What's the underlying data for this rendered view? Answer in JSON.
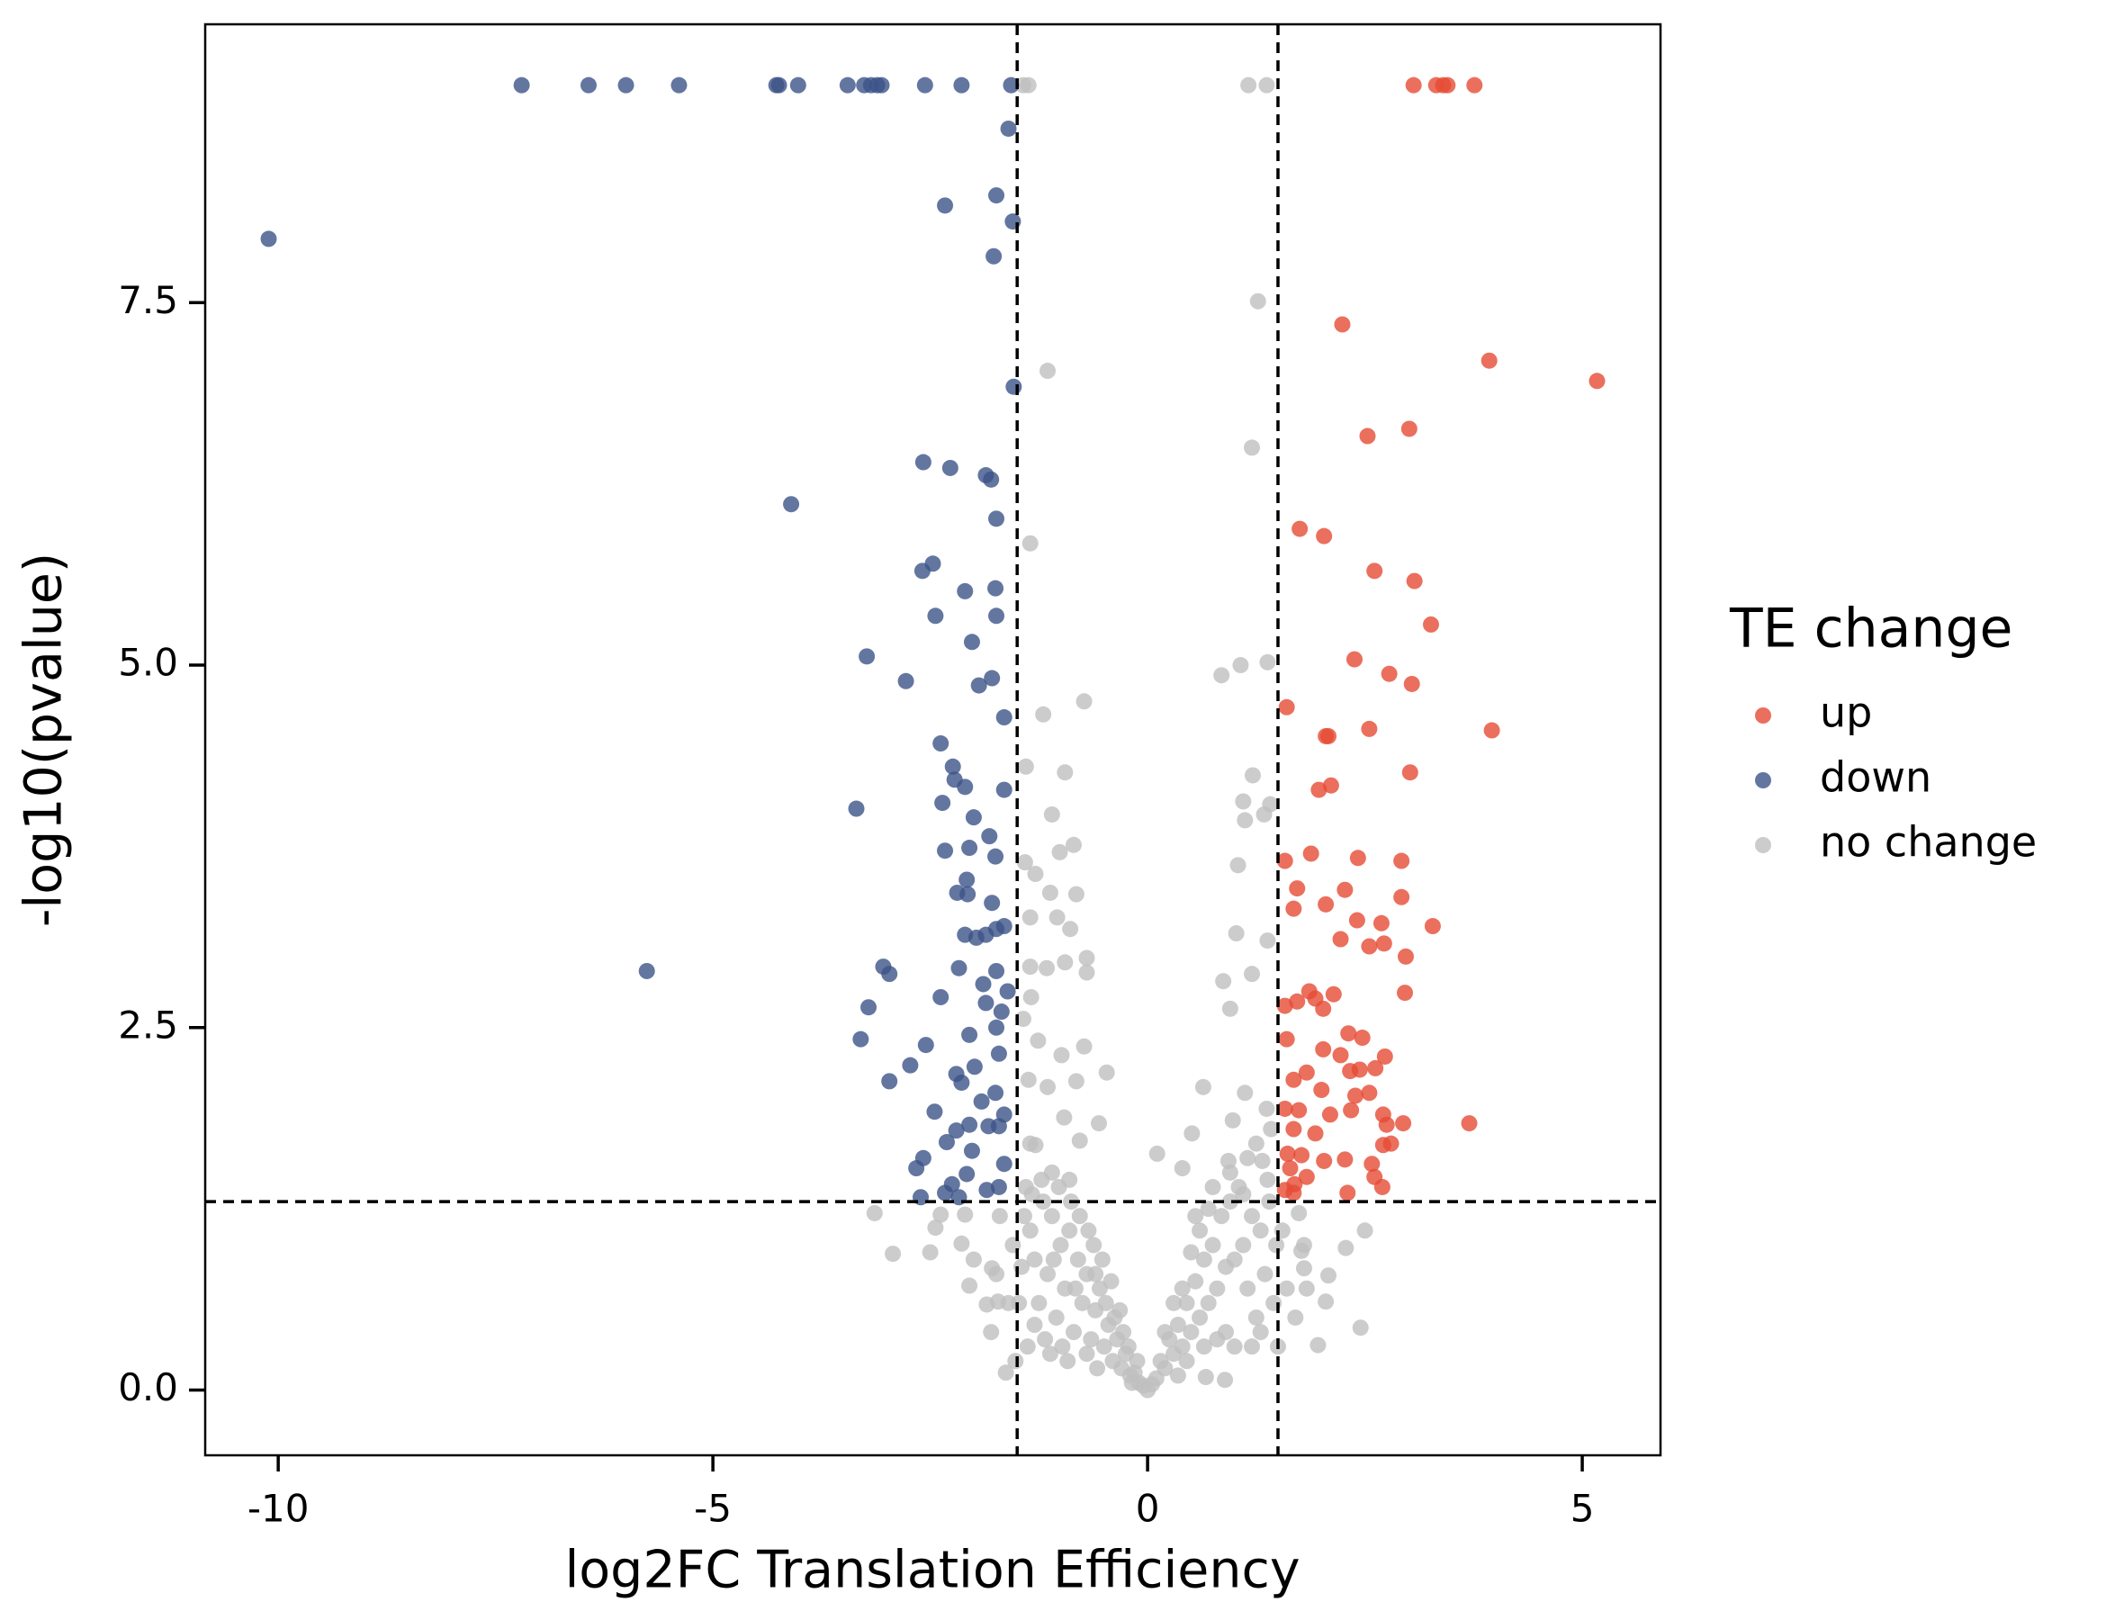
{
  "chart_data": {
    "type": "scatter",
    "xlabel": "log2FC Translation Efficiency",
    "ylabel": "-log10(pvalue)",
    "xlim": [
      -10.84,
      5.9
    ],
    "ylim": [
      -0.45,
      9.42
    ],
    "xticks": [
      -10,
      -5,
      0,
      5
    ],
    "yticks": [
      {
        "value": 0,
        "label": "0.0"
      },
      2.5,
      {
        "value": 5,
        "label": "5.0"
      },
      7.5
    ],
    "thresholds": {
      "x": [
        -1.5,
        1.5
      ],
      "y": 1.3
    },
    "legend_title": "TE change",
    "legend": "right",
    "opacity": 0.8,
    "series": [
      {
        "name": "no change",
        "color": "#bfbfbf",
        "x": [
          -1.43,
          -1.37,
          1.16,
          1.37,
          1.27,
          -1.15,
          1.2,
          -1.35,
          1.38,
          0.85,
          1.07,
          -0.73,
          -1.2,
          -1.4,
          -0.95,
          1.21,
          1.1,
          1.41,
          -1.1,
          1.12,
          1.34,
          -0.85,
          -1.01,
          1.04,
          -1.41,
          -1.29,
          -0.82,
          -1.12,
          -1.04,
          -1.35,
          -0.89,
          1.02,
          1.38,
          -0.7,
          -0.95,
          -1.35,
          -1.16,
          1.2,
          -0.7,
          0.87,
          0.95,
          -1.34,
          -1.43,
          -1.26,
          -0.73,
          -0.99,
          -0.82,
          -0.47,
          -1.37,
          -1.15,
          0.64,
          1.12,
          -0.96,
          -0.56,
          0.51,
          0.98,
          1.37,
          -1.29,
          -0.78,
          0.11,
          0.4,
          0.93,
          1.32,
          -3.14,
          -2.38,
          -2.1,
          -2.93,
          -2.5,
          -2.44,
          -2.14,
          -2.0,
          -1.79,
          -1.74,
          -2.05,
          -1.72,
          -1.85,
          -1.63,
          1.74,
          2.5,
          1.77,
          2.28,
          2.08,
          1.8,
          1.83,
          2.05,
          2.45,
          1.96,
          0.89,
          0.67,
          -1.4,
          -1.35,
          -1.3,
          -1.25,
          -1.2,
          -1.15,
          -1.1,
          -1.05,
          -1.0,
          -0.95,
          -0.9,
          -0.85,
          -0.8,
          -0.75,
          -0.7,
          -0.65,
          -0.6,
          -0.55,
          -0.5,
          -0.45,
          -0.4,
          -0.35,
          -0.3,
          -0.25,
          -0.2,
          -0.15,
          -0.1,
          -0.05,
          -1.38,
          -1.3,
          -1.22,
          -1.12,
          -1.02,
          -0.92,
          -0.88,
          -0.78,
          -0.7,
          -0.62,
          -0.58,
          -0.52,
          -0.48,
          -0.42,
          -0.38,
          -0.32,
          -0.28,
          -0.22,
          -0.18,
          -0.12,
          -1.45,
          -1.48,
          -1.42,
          -1.33,
          -1.18,
          -1.08,
          -0.98,
          -0.83,
          -0.68,
          -0.6,
          -1.35,
          -1.1,
          -0.9,
          0.05,
          0.1,
          0.15,
          0.2,
          0.25,
          0.3,
          0.35,
          0.4,
          0.45,
          0.5,
          0.55,
          0.6,
          0.65,
          0.7,
          0.75,
          0.8,
          0.85,
          0.9,
          0.95,
          1.0,
          1.05,
          1.1,
          1.15,
          1.2,
          1.25,
          1.3,
          1.35,
          1.4,
          1.45,
          1.48,
          0.3,
          0.4,
          0.5,
          0.6,
          0.7,
          0.8,
          0.9,
          1.0,
          1.1,
          1.2,
          1.3,
          1.38,
          0.55,
          0.75,
          0.95,
          1.15,
          1.25,
          0.65,
          0.45,
          0.2,
          0.35,
          1.42,
          0.0,
          1.55,
          1.6,
          1.7,
          1.8,
          1.5,
          -1.55,
          -1.6,
          -1.7,
          -1.8,
          -1.52
        ],
        "values": [
          9.0,
          9.0,
          9.0,
          9.0,
          7.51,
          7.03,
          6.5,
          5.84,
          5.02,
          4.93,
          5.0,
          4.75,
          4.66,
          4.3,
          4.26,
          4.24,
          4.06,
          4.04,
          3.97,
          3.93,
          3.97,
          3.76,
          3.71,
          3.62,
          3.64,
          3.56,
          3.42,
          3.43,
          3.26,
          3.26,
          3.18,
          3.15,
          3.1,
          2.98,
          2.95,
          2.92,
          2.91,
          2.87,
          2.88,
          2.82,
          2.63,
          2.71,
          2.56,
          2.41,
          2.37,
          2.31,
          2.13,
          2.19,
          2.14,
          2.09,
          2.09,
          2.05,
          1.88,
          1.84,
          1.77,
          1.86,
          1.94,
          1.69,
          1.72,
          1.63,
          1.53,
          1.58,
          1.58,
          1.22,
          1.21,
          1.21,
          0.94,
          0.95,
          1.12,
          1.01,
          0.9,
          0.84,
          0.8,
          0.72,
          0.61,
          0.59,
          0.12,
          1.22,
          1.1,
          0.96,
          0.98,
          0.79,
          0.84,
          0.7,
          0.61,
          0.43,
          0.31,
          0.07,
          0.09,
          1.4,
          1.1,
          0.9,
          0.6,
          1.3,
          0.8,
          1.2,
          0.5,
          1.0,
          0.7,
          1.1,
          0.4,
          0.9,
          0.6,
          0.8,
          0.35,
          0.55,
          0.7,
          0.3,
          0.45,
          0.2,
          0.35,
          0.15,
          0.25,
          0.1,
          0.12,
          0.05,
          0.03,
          0.3,
          0.45,
          1.45,
          0.25,
          1.4,
          0.2,
          1.3,
          1.2,
          0.25,
          1.0,
          0.15,
          0.9,
          0.6,
          0.75,
          0.5,
          0.55,
          0.4,
          0.3,
          0.05,
          0.2,
          0.85,
          0.6,
          1.2,
          1.35,
          0.35,
          0.9,
          0.3,
          0.7,
          1.1,
          0.8,
          1.7,
          1.5,
          1.45,
          0.04,
          0.08,
          0.2,
          0.15,
          0.35,
          0.25,
          0.45,
          0.3,
          0.6,
          0.4,
          0.75,
          0.5,
          0.9,
          0.6,
          1.0,
          0.7,
          1.2,
          0.85,
          1.3,
          0.9,
          1.4,
          1.0,
          0.7,
          1.2,
          0.5,
          1.1,
          0.8,
          1.3,
          0.6,
          1.0,
          0.6,
          0.7,
          0.95,
          1.1,
          1.25,
          0.35,
          0.4,
          0.3,
          1.35,
          0.3,
          0.4,
          1.45,
          1.2,
          1.4,
          1.5,
          1.6,
          1.7,
          0.3,
          0.2,
          0.4,
          0.1,
          1.8,
          0.0,
          1.1,
          0.7,
          0.5,
          1.0,
          0.3,
          1.0,
          0.6,
          1.2,
          0.4,
          0.2
        ]
      },
      {
        "name": "up",
        "color": "#e64b35",
        "x": [
          3.06,
          3.32,
          3.4,
          3.45,
          3.76,
          2.24,
          3.93,
          5.17,
          3.01,
          2.53,
          1.75,
          2.03,
          2.61,
          3.07,
          3.26,
          2.38,
          2.78,
          3.04,
          1.6,
          2.05,
          2.08,
          2.55,
          3.96,
          3.02,
          2.11,
          1.97,
          1.88,
          1.58,
          2.42,
          2.92,
          1.72,
          2.27,
          2.92,
          1.68,
          2.05,
          2.41,
          3.28,
          2.69,
          2.22,
          2.55,
          2.72,
          2.97,
          2.96,
          2.14,
          1.86,
          1.93,
          1.72,
          1.58,
          2.02,
          2.47,
          2.31,
          1.6,
          2.22,
          2.02,
          2.73,
          2.44,
          2.62,
          2.33,
          1.83,
          1.68,
          2.0,
          2.39,
          2.55,
          1.58,
          1.74,
          2.1,
          2.34,
          2.71,
          3.7,
          2.94,
          2.75,
          1.68,
          1.93,
          2.8,
          2.71,
          1.61,
          1.77,
          2.03,
          2.27,
          2.58,
          1.64,
          1.83,
          1.69,
          2.61,
          2.7,
          1.68,
          2.3,
          1.58
        ],
        "values": [
          9.0,
          9.0,
          9.0,
          9.0,
          9.0,
          7.35,
          7.1,
          6.96,
          6.63,
          6.58,
          5.94,
          5.89,
          5.65,
          5.58,
          5.28,
          5.04,
          4.94,
          4.87,
          4.71,
          4.51,
          4.51,
          4.56,
          4.55,
          4.26,
          4.17,
          4.14,
          3.7,
          3.65,
          3.67,
          3.65,
          3.46,
          3.45,
          3.4,
          3.32,
          3.35,
          3.24,
          3.2,
          3.22,
          3.11,
          3.06,
          3.08,
          2.99,
          2.74,
          2.73,
          2.75,
          2.7,
          2.68,
          2.65,
          2.63,
          2.43,
          2.46,
          2.42,
          2.31,
          2.35,
          2.3,
          2.21,
          2.22,
          2.2,
          2.19,
          2.14,
          2.07,
          2.03,
          2.05,
          1.94,
          1.93,
          1.9,
          1.93,
          1.9,
          1.84,
          1.84,
          1.83,
          1.8,
          1.77,
          1.7,
          1.69,
          1.63,
          1.62,
          1.58,
          1.59,
          1.56,
          1.53,
          1.47,
          1.42,
          1.47,
          1.4,
          1.36,
          1.36,
          1.38
        ]
      },
      {
        "name": "down",
        "color": "#3c5488",
        "x": [
          -7.2,
          -6.43,
          -6.0,
          -5.39,
          -4.27,
          -4.24,
          -4.02,
          -3.45,
          -3.26,
          -3.18,
          -3.11,
          -3.06,
          -2.56,
          -2.14,
          -1.57,
          -10.11,
          -1.6,
          -2.33,
          -1.74,
          -1.55,
          -1.77,
          -1.54,
          -4.1,
          -2.58,
          -2.27,
          -1.86,
          -1.8,
          -1.74,
          -2.47,
          -2.59,
          -2.1,
          -1.75,
          -1.74,
          -2.44,
          -2.02,
          -3.23,
          -2.78,
          -1.79,
          -1.94,
          -1.65,
          -2.38,
          -2.24,
          -2.22,
          -2.1,
          -1.65,
          -2.36,
          -3.35,
          -2.0,
          -1.82,
          -2.05,
          -2.33,
          -1.75,
          -2.08,
          -2.19,
          -2.07,
          -1.79,
          -1.65,
          -2.1,
          -1.97,
          -1.86,
          -1.74,
          -5.76,
          -3.04,
          -2.97,
          -2.17,
          -1.74,
          -1.89,
          -1.61,
          -2.38,
          -1.86,
          -1.68,
          -3.21,
          -1.74,
          -2.05,
          -3.3,
          -2.55,
          -1.71,
          -1.99,
          -2.73,
          -2.2,
          -2.97,
          -2.14,
          -1.75,
          -1.91,
          -1.65,
          -2.45,
          -2.05,
          -2.2,
          -1.83,
          -1.71,
          -2.31,
          -2.02,
          -2.58,
          -1.65,
          -2.66,
          -2.08,
          -2.25,
          -1.85,
          -2.61,
          -2.17,
          -1.71,
          -2.33
        ],
        "values": [
          9.0,
          9.0,
          9.0,
          9.0,
          9.0,
          9.0,
          9.0,
          9.0,
          9.0,
          9.0,
          9.0,
          9.0,
          9.0,
          9.0,
          9.0,
          7.94,
          8.7,
          8.17,
          8.24,
          8.06,
          7.82,
          6.92,
          6.11,
          6.4,
          6.36,
          6.31,
          6.28,
          6.01,
          5.7,
          5.65,
          5.51,
          5.53,
          5.34,
          5.34,
          5.16,
          5.06,
          4.89,
          4.91,
          4.86,
          4.64,
          4.46,
          4.3,
          4.21,
          4.16,
          4.14,
          4.05,
          4.01,
          3.95,
          3.82,
          3.74,
          3.72,
          3.68,
          3.52,
          3.43,
          3.42,
          3.36,
          3.2,
          3.14,
          3.12,
          3.14,
          3.18,
          2.89,
          2.92,
          2.87,
          2.91,
          2.89,
          2.8,
          2.75,
          2.71,
          2.67,
          2.61,
          2.64,
          2.5,
          2.45,
          2.42,
          2.38,
          2.32,
          2.23,
          2.24,
          2.18,
          2.13,
          2.12,
          2.05,
          1.99,
          1.9,
          1.92,
          1.83,
          1.79,
          1.82,
          1.82,
          1.71,
          1.65,
          1.6,
          1.56,
          1.53,
          1.49,
          1.42,
          1.38,
          1.33,
          1.33,
          1.4,
          1.36
        ]
      }
    ]
  }
}
